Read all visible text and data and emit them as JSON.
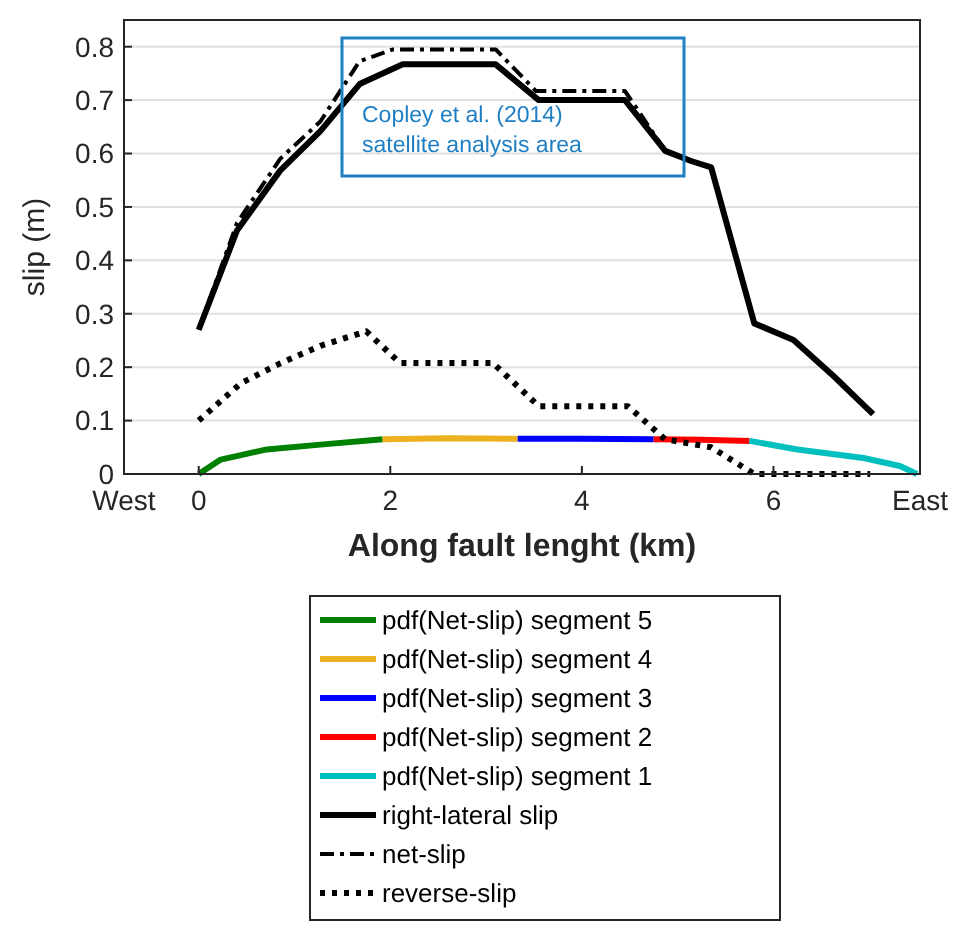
{
  "chart_data": {
    "type": "line",
    "xlabel": "Along fault lenght (km)",
    "ylabel": "slip (m)",
    "xlim": [
      -0.78,
      7.53
    ],
    "ylim": [
      0,
      0.85
    ],
    "xticks": [
      {
        "value": -0.78,
        "label": "West"
      },
      0,
      2,
      4,
      6,
      {
        "value": 7.53,
        "label": "East"
      }
    ],
    "yticks": [
      0,
      0.1,
      0.2,
      0.3,
      0.4,
      0.5,
      0.6,
      0.7,
      0.8
    ],
    "grid": "y",
    "legend": "bottom",
    "annotations": [
      "Copley et al. (2014)\nsatellite analysis area"
    ],
    "series": [
      {
        "name": "pdf(Net-slip) segment 5",
        "color": "#008000",
        "line_style": "solid",
        "x": [
          0,
          0.23,
          0.71,
          1.27,
          1.92
        ],
        "values": [
          0,
          0.027,
          0.046,
          0.055,
          0.065
        ]
      },
      {
        "name": "pdf(Net-slip) segment 4",
        "color": "#edb120",
        "line_style": "solid",
        "x": [
          1.92,
          2.6,
          3.33
        ],
        "values": [
          0.065,
          0.067,
          0.066
        ]
      },
      {
        "name": "pdf(Net-slip) segment 3",
        "color": "#0000ff",
        "line_style": "solid",
        "x": [
          3.33,
          4,
          4.75
        ],
        "values": [
          0.066,
          0.066,
          0.065
        ]
      },
      {
        "name": "pdf(Net-slip) segment 2",
        "color": "#ff0000",
        "line_style": "solid",
        "x": [
          4.75,
          5.25,
          5.75
        ],
        "values": [
          0.065,
          0.064,
          0.062
        ]
      },
      {
        "name": "pdf(Net-slip) segment 1",
        "color": "#00bfbf",
        "line_style": "solid",
        "x": [
          5.75,
          6.25,
          6.94,
          7.32,
          7.5
        ],
        "values": [
          0.062,
          0.046,
          0.03,
          0.015,
          0
        ]
      },
      {
        "name": "right-lateral slip",
        "color": "#000000",
        "line_style": "solid",
        "x": [
          0,
          0.4,
          0.85,
          1.27,
          1.68,
          2.13,
          3.1,
          3.55,
          4.45,
          4.87,
          5.14,
          5.35,
          5.8,
          6.21,
          6.63,
          7.04
        ],
        "values": [
          0.27,
          0.456,
          0.568,
          0.642,
          0.73,
          0.767,
          0.767,
          0.7,
          0.7,
          0.605,
          0.586,
          0.574,
          0.282,
          0.251,
          0.183,
          0.112
        ]
      },
      {
        "name": "net-slip",
        "color": "#000000",
        "line_style": "dashdot",
        "x": [
          0,
          0.4,
          0.85,
          1.27,
          1.68,
          2.03,
          3.1,
          3.52,
          4.45,
          4.87,
          5.14,
          5.35,
          5.8,
          6.21,
          6.63,
          7.04
        ],
        "values": [
          0.27,
          0.47,
          0.59,
          0.66,
          0.773,
          0.795,
          0.795,
          0.717,
          0.717,
          0.605,
          0.586,
          0.574,
          0.282,
          0.251,
          0.183,
          0.112
        ]
      },
      {
        "name": "reverse-slip",
        "color": "#000000",
        "line_style": "dotted",
        "x": [
          0,
          0.44,
          0.85,
          1.27,
          1.75,
          2.1,
          3.07,
          3.55,
          4.48,
          4.87,
          5.35,
          5.8,
          7.01
        ],
        "values": [
          0.1,
          0.17,
          0.207,
          0.24,
          0.267,
          0.208,
          0.208,
          0.127,
          0.127,
          0.065,
          0.05,
          0,
          0
        ]
      }
    ]
  }
}
